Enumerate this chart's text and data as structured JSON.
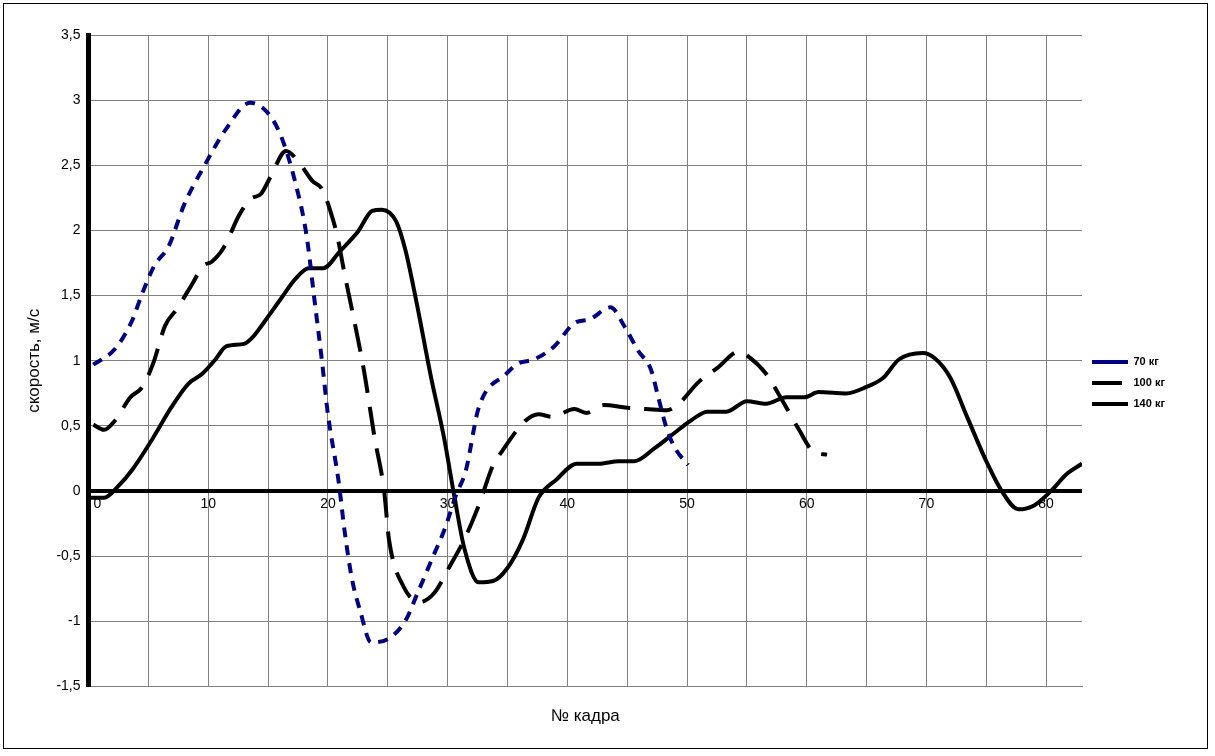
{
  "chart_data": {
    "type": "line",
    "xlabel": "№ кадра",
    "ylabel": "скорость, м/с",
    "xlim": [
      0,
      83
    ],
    "xticks": [
      0,
      {
        "value": 5,
        "label": null
      },
      10,
      {
        "value": 15,
        "label": null
      },
      20,
      {
        "value": 25,
        "label": null
      },
      30,
      {
        "value": 35,
        "label": null
      },
      40,
      {
        "value": 45,
        "label": null
      },
      50,
      {
        "value": 55,
        "label": null
      },
      60,
      {
        "value": 65,
        "label": null
      },
      70,
      {
        "value": 75,
        "label": null
      },
      80
    ],
    "ylim": [
      -1.5,
      3.5
    ],
    "yticks": [
      {
        "value": -1.5,
        "label": "-1,5"
      },
      -1,
      {
        "value": -0.5,
        "label": "-0,5"
      },
      0,
      {
        "value": 0.5,
        "label": "0,5"
      },
      1,
      {
        "value": 1.5,
        "label": "1,5"
      },
      2,
      {
        "value": 2.5,
        "label": "2,5"
      },
      3,
      {
        "value": 3.5,
        "label": "3,5"
      }
    ],
    "grid": true,
    "legend": "right",
    "marker": "none",
    "series": [
      {
        "name": "70 кг",
        "color": "#000080",
        "line_style": "dotted",
        "x": [
          0.4,
          2.2,
          3.6,
          4.5,
          5.5,
          6.7,
          8,
          9.7,
          11.5,
          13.5,
          15,
          16.1,
          17.3,
          18.2,
          18.9,
          19.5,
          20,
          20.9,
          21.4,
          22,
          22.7,
          23.6,
          25.1,
          26.5,
          27.5,
          28.7,
          29.8,
          30.7,
          31.5,
          32.6,
          34.9,
          35.9,
          37.2,
          38.9,
          40.6,
          41.9,
          43.6,
          44.8,
          45.9,
          47,
          47.6,
          48.3,
          49,
          50.1
        ],
        "values": [
          0.97,
          1.09,
          1.3,
          1.52,
          1.73,
          1.88,
          2.2,
          2.5,
          2.78,
          2.98,
          2.9,
          2.72,
          2.36,
          1.97,
          1.45,
          1.0,
          0.59,
          0.07,
          -0.31,
          -0.67,
          -0.92,
          -1.16,
          -1.13,
          -0.99,
          -0.78,
          -0.52,
          -0.28,
          -0.03,
          0.15,
          0.64,
          0.9,
          0.98,
          1.01,
          1.11,
          1.29,
          1.32,
          1.41,
          1.26,
          1.08,
          0.93,
          0.72,
          0.48,
          0.33,
          0.2
        ]
      },
      {
        "name": "100 кг",
        "color": "#000000",
        "line_style": "dashed",
        "x": [
          0.4,
          1.3,
          2.2,
          3.5,
          4.5,
          5.4,
          6.4,
          7.4,
          8.6,
          9.6,
          10.3,
          11.3,
          12.6,
          13.5,
          14.4,
          15.2,
          16.5,
          17.6,
          18.7,
          19.5,
          20.2,
          20.8,
          21.3,
          23,
          23.9,
          24.7,
          25.1,
          26.3,
          27.7,
          28.9,
          30.1,
          31.4,
          32.6,
          33.8,
          34.5,
          36.5,
          37.6,
          38.7,
          40.6,
          41.6,
          43,
          45,
          46.6,
          48.3,
          49.3,
          51,
          52.6,
          54.3,
          55.3,
          56.6,
          58,
          59.3,
          60.6,
          61.7
        ],
        "values": [
          0.51,
          0.47,
          0.54,
          0.72,
          0.8,
          0.98,
          1.27,
          1.4,
          1.58,
          1.73,
          1.76,
          1.87,
          2.12,
          2.24,
          2.28,
          2.41,
          2.61,
          2.52,
          2.38,
          2.32,
          2.15,
          1.95,
          1.71,
          0.93,
          0.41,
          0.0,
          -0.37,
          -0.73,
          -0.85,
          -0.78,
          -0.59,
          -0.37,
          -0.11,
          0.2,
          0.3,
          0.54,
          0.59,
          0.57,
          0.63,
          0.6,
          0.66,
          0.64,
          0.63,
          0.62,
          0.67,
          0.84,
          0.95,
          1.07,
          1.02,
          0.9,
          0.69,
          0.48,
          0.3,
          0.28
        ]
      },
      {
        "name": "140 кг",
        "color": "#000000",
        "line_style": "solid",
        "x": [
          0,
          1.3,
          2.5,
          3.7,
          5.4,
          6.9,
          8.3,
          9.5,
          10.6,
          11.5,
          13,
          13.8,
          14.7,
          16.1,
          17.3,
          18.4,
          19.6,
          21,
          22.5,
          23.7,
          24.5,
          25.7,
          26.5,
          27.4,
          28.6,
          29.7,
          30.6,
          31.4,
          32.6,
          33.8,
          35,
          36.3,
          37.6,
          39.1,
          40.8,
          42.6,
          44.3,
          45.6,
          47.3,
          49,
          50.3,
          51.7,
          53.3,
          55,
          56.6,
          58.3,
          59.8,
          61,
          63.3,
          65,
          66.4,
          67.7,
          69.7,
          70.7,
          72,
          73.4,
          75,
          76.3,
          77.7,
          79,
          80.4,
          81.7,
          83
        ],
        "values": [
          -0.05,
          -0.05,
          0.04,
          0.17,
          0.41,
          0.64,
          0.82,
          0.9,
          1.01,
          1.11,
          1.13,
          1.19,
          1.3,
          1.48,
          1.63,
          1.71,
          1.71,
          1.84,
          1.99,
          2.15,
          2.16,
          2.07,
          1.84,
          1.45,
          0.88,
          0.41,
          -0.06,
          -0.44,
          -0.7,
          -0.69,
          -0.59,
          -0.37,
          -0.05,
          0.09,
          0.21,
          0.21,
          0.23,
          0.23,
          0.33,
          0.45,
          0.54,
          0.61,
          0.61,
          0.69,
          0.67,
          0.72,
          0.72,
          0.76,
          0.75,
          0.8,
          0.87,
          1.01,
          1.06,
          1.02,
          0.87,
          0.57,
          0.23,
          0,
          -0.14,
          -0.11,
          0,
          0.13,
          0.21
        ]
      }
    ]
  }
}
